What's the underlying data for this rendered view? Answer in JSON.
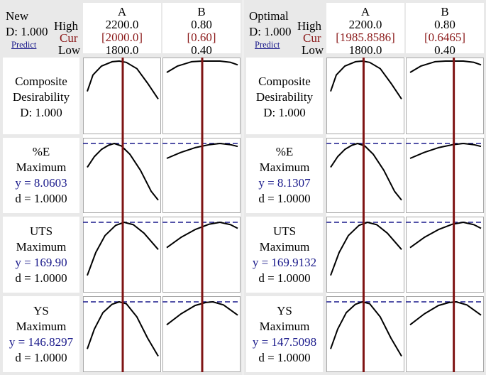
{
  "colors": {
    "cur_line": "#7f1414",
    "target": "#1a1a8b",
    "curve": "#000000",
    "cur_text": "#8b1a1a",
    "y_text": "#1a1a8b"
  },
  "panels": [
    {
      "name": "new",
      "header": {
        "title": "New",
        "d": "D: 1.000",
        "link": "Predict",
        "high": "High",
        "cur": "Cur",
        "low": "Low"
      },
      "factors": [
        {
          "name": "A",
          "high": "2200.0",
          "cur": "[2000.0]",
          "low": "1800.0"
        },
        {
          "name": "B",
          "high": "0.80",
          "cur": "[0.60]",
          "low": "0.40"
        }
      ],
      "rows": [
        {
          "l1": "Composite",
          "l2": "Desirability",
          "l3": "D: 1.000",
          "l4": ""
        },
        {
          "l1": "%E",
          "l2": "Maximum",
          "l3": "y = 8.0603",
          "l4": "d = 1.0000"
        },
        {
          "l1": "UTS",
          "l2": "Maximum",
          "l3": "y = 169.90",
          "l4": "d = 1.0000"
        },
        {
          "l1": "YS",
          "l2": "Maximum",
          "l3": "y = 146.8297",
          "l4": "d = 1.0000"
        }
      ]
    },
    {
      "name": "optimal",
      "header": {
        "title": "Optimal",
        "d": "D: 1.000",
        "link": "Predict",
        "high": "High",
        "cur": "Cur",
        "low": "Low"
      },
      "factors": [
        {
          "name": "A",
          "high": "2200.0",
          "cur": "[1985.8586]",
          "low": "1800.0"
        },
        {
          "name": "B",
          "high": "0.80",
          "cur": "[0.6465]",
          "low": "0.40"
        }
      ],
      "rows": [
        {
          "l1": "Composite",
          "l2": "Desirability",
          "l3": "D: 1.000",
          "l4": ""
        },
        {
          "l1": "%E",
          "l2": "Maximum",
          "l3": "y = 8.1307",
          "l4": "d = 1.0000"
        },
        {
          "l1": "UTS",
          "l2": "Maximum",
          "l3": "y = 169.9132",
          "l4": "d = 1.0000"
        },
        {
          "l1": "YS",
          "l2": "Maximum",
          "l3": "y = 147.5098",
          "l4": "d = 1.0000"
        }
      ]
    }
  ],
  "chart_data": {
    "type": "line",
    "factors": [
      {
        "name": "A",
        "range": [
          1800.0,
          2200.0
        ]
      },
      {
        "name": "B",
        "range": [
          0.4,
          0.8
        ]
      }
    ],
    "responses": [
      "Composite Desirability",
      "%E",
      "UTS",
      "YS"
    ],
    "settings": {
      "new": {
        "A": 2000.0,
        "B": 0.6
      },
      "optimal": {
        "A": 1985.8586,
        "B": 0.6465
      }
    },
    "predicted": {
      "new": {
        "%E": 8.0603,
        "UTS": 169.9,
        "YS": 146.8297,
        "D": 1.0
      },
      "optimal": {
        "%E": 8.1307,
        "UTS": 169.9132,
        "YS": 147.5098,
        "D": 1.0
      }
    },
    "curve_shapes": {
      "A": [
        [
          [
            0,
            0.48
          ],
          [
            0.08,
            0.22
          ],
          [
            0.2,
            0.08
          ],
          [
            0.35,
            0.01
          ],
          [
            0.45,
            0
          ],
          [
            0.55,
            0.02
          ],
          [
            0.7,
            0.12
          ],
          [
            0.85,
            0.35
          ],
          [
            1,
            0.6
          ]
        ],
        [
          [
            0,
            0.4
          ],
          [
            0.1,
            0.22
          ],
          [
            0.2,
            0.1
          ],
          [
            0.3,
            0.03
          ],
          [
            0.38,
            0
          ],
          [
            0.48,
            0.04
          ],
          [
            0.6,
            0.18
          ],
          [
            0.75,
            0.45
          ],
          [
            0.9,
            0.8
          ],
          [
            1,
            0.95
          ]
        ],
        [
          [
            0,
            0.88
          ],
          [
            0.12,
            0.5
          ],
          [
            0.25,
            0.22
          ],
          [
            0.4,
            0.05
          ],
          [
            0.52,
            0
          ],
          [
            0.65,
            0.04
          ],
          [
            0.8,
            0.18
          ],
          [
            1,
            0.45
          ]
        ],
        [
          [
            0,
            0.78
          ],
          [
            0.1,
            0.45
          ],
          [
            0.22,
            0.18
          ],
          [
            0.35,
            0.04
          ],
          [
            0.45,
            0
          ],
          [
            0.55,
            0.03
          ],
          [
            0.7,
            0.25
          ],
          [
            0.85,
            0.6
          ],
          [
            1,
            0.9
          ]
        ]
      ],
      "B": [
        [
          [
            0,
            0.18
          ],
          [
            0.15,
            0.08
          ],
          [
            0.35,
            0.01
          ],
          [
            0.5,
            0
          ],
          [
            0.75,
            0
          ],
          [
            0.9,
            0.02
          ],
          [
            1,
            0.06
          ]
        ],
        [
          [
            0,
            0.25
          ],
          [
            0.2,
            0.15
          ],
          [
            0.4,
            0.07
          ],
          [
            0.6,
            0.02
          ],
          [
            0.75,
            0
          ],
          [
            0.9,
            0.02
          ],
          [
            1,
            0.05
          ]
        ],
        [
          [
            0,
            0.42
          ],
          [
            0.2,
            0.25
          ],
          [
            0.4,
            0.12
          ],
          [
            0.6,
            0.03
          ],
          [
            0.75,
            0
          ],
          [
            0.9,
            0.04
          ],
          [
            1,
            0.1
          ]
        ],
        [
          [
            0,
            0.38
          ],
          [
            0.2,
            0.2
          ],
          [
            0.4,
            0.06
          ],
          [
            0.55,
            0.01
          ],
          [
            0.65,
            0
          ],
          [
            0.8,
            0.05
          ],
          [
            1,
            0.22
          ]
        ]
      ]
    }
  }
}
